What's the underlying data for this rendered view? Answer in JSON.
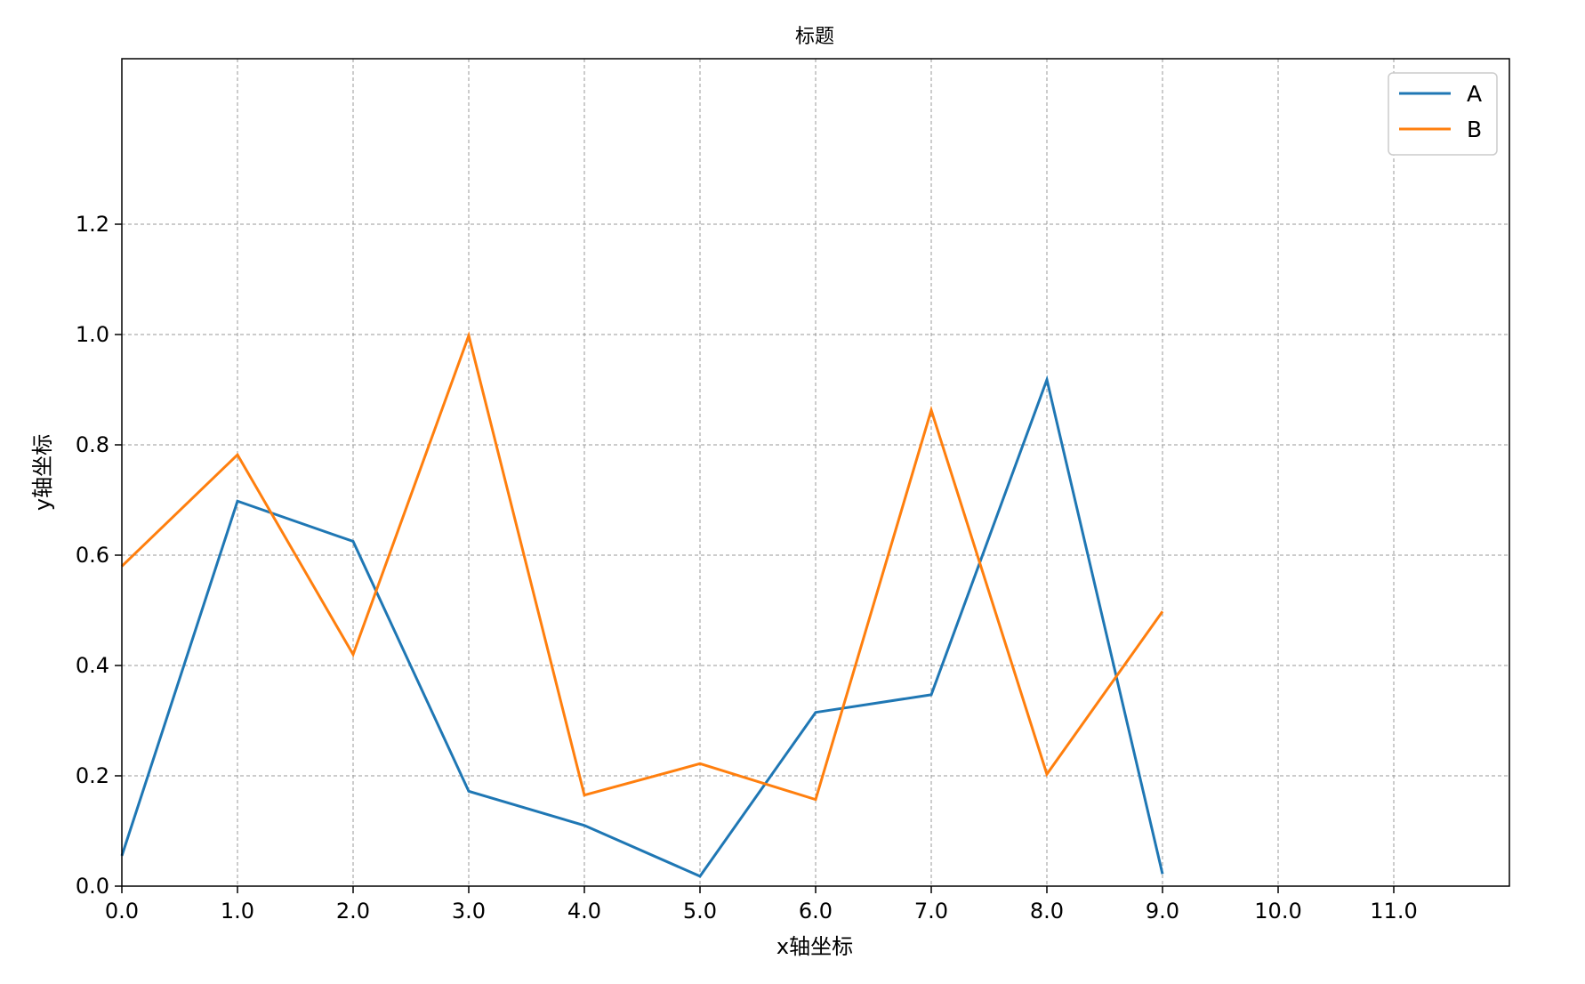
{
  "chart_data": {
    "type": "line",
    "title": "标题",
    "xlabel": "x轴坐标",
    "ylabel": "y轴坐标",
    "x": [
      0,
      1,
      2,
      3,
      4,
      5,
      6,
      7,
      8,
      9
    ],
    "series": [
      {
        "name": "A",
        "color": "#1f77b4",
        "values": [
          0.055,
          0.698,
          0.625,
          0.172,
          0.11,
          0.018,
          0.315,
          0.347,
          0.918,
          0.022
        ]
      },
      {
        "name": "B",
        "color": "#ff7f0e",
        "values": [
          0.58,
          0.782,
          0.42,
          0.998,
          0.165,
          0.222,
          0.157,
          0.863,
          0.203,
          0.498
        ]
      }
    ],
    "xlim": [
      0,
      12
    ],
    "ylim": [
      0,
      1.5
    ],
    "xticks": [
      0,
      1,
      2,
      3,
      4,
      5,
      6,
      7,
      8,
      9,
      10,
      11
    ],
    "xtick_labels": [
      "0.0",
      "1.0",
      "2.0",
      "3.0",
      "4.0",
      "5.0",
      "6.0",
      "7.0",
      "8.0",
      "9.0",
      "10.0",
      "11.0"
    ],
    "yticks": [
      0,
      0.2,
      0.4,
      0.6,
      0.8,
      1.0,
      1.2
    ],
    "ytick_labels": [
      "0.0",
      "0.2",
      "0.4",
      "0.6",
      "0.8",
      "1.0",
      "1.2"
    ],
    "grid": true,
    "grid_style": "dashed",
    "grid_color": "#9a9a9a",
    "legend_position": "top-right"
  }
}
